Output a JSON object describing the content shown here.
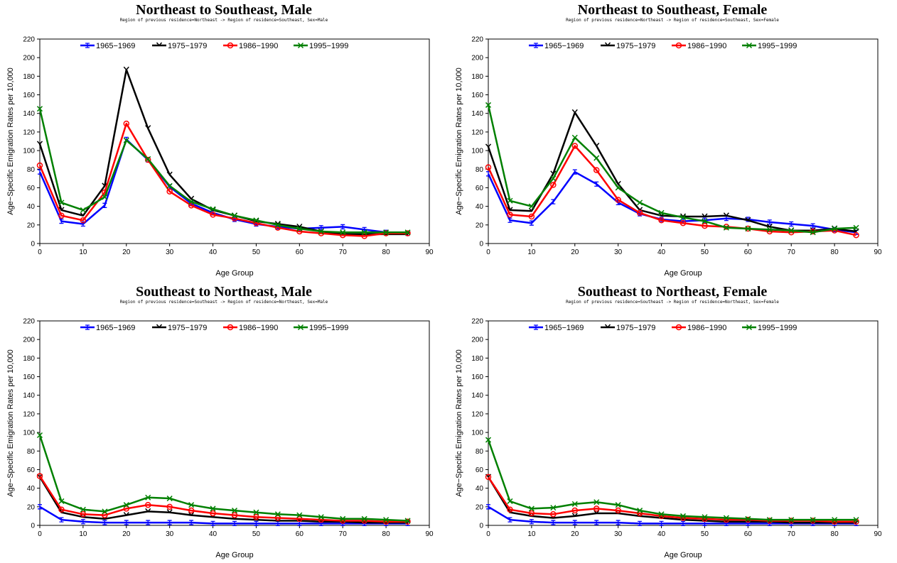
{
  "colors": {
    "1965-1969": "#0000ff",
    "1975-1979": "#000000",
    "1986-1990": "#ff0000",
    "1995-1999": "#008000"
  },
  "chart_data": [
    {
      "type": "line",
      "title": "Northeast to Southeast, Male",
      "subtitle": "Region of previous residence=Northeast -> Region of residence=Southeast, Sex=Male",
      "xlabel": "Age Group",
      "ylabel": "Age−Specific Emigration Rates per 10,000",
      "xlim": [
        0,
        90
      ],
      "ylim": [
        0,
        220
      ],
      "xticks": [
        0,
        10,
        20,
        30,
        40,
        50,
        60,
        70,
        80,
        90
      ],
      "yticks": [
        0,
        20,
        40,
        60,
        80,
        100,
        120,
        140,
        160,
        180,
        200,
        220
      ],
      "legend": "top",
      "x": [
        0,
        5,
        10,
        15,
        20,
        25,
        30,
        35,
        40,
        45,
        50,
        55,
        60,
        65,
        70,
        75,
        80,
        85
      ],
      "series": [
        {
          "name": "1965−1969",
          "color": "#0000ff",
          "values": [
            77,
            24,
            21,
            41,
            112,
            90,
            61,
            43,
            33,
            26,
            21,
            18,
            16,
            17,
            18,
            15,
            12,
            11
          ]
        },
        {
          "name": "1975−1979",
          "color": "#000000",
          "values": [
            107,
            36,
            30,
            62,
            187,
            124,
            74,
            48,
            36,
            30,
            24,
            21,
            18,
            13,
            10,
            10,
            10,
            10
          ]
        },
        {
          "name": "1986−1990",
          "color": "#ff0000",
          "values": [
            84,
            30,
            25,
            55,
            129,
            90,
            56,
            41,
            31,
            27,
            22,
            17,
            13,
            11,
            9,
            8,
            11,
            11
          ]
        },
        {
          "name": "1995−1999",
          "color": "#008000",
          "values": [
            145,
            44,
            36,
            50,
            111,
            91,
            62,
            45,
            37,
            30,
            25,
            20,
            16,
            13,
            12,
            12,
            12,
            12
          ]
        }
      ]
    },
    {
      "type": "line",
      "title": "Northeast to Southeast, Female",
      "subtitle": "Region of previous residence=Northeast -> Region of residence=Southeast, Sex=Female",
      "xlabel": "Age Group",
      "ylabel": "Age−Specific Emigration Rates per 10,000",
      "xlim": [
        0,
        90
      ],
      "ylim": [
        0,
        220
      ],
      "xticks": [
        0,
        10,
        20,
        30,
        40,
        50,
        60,
        70,
        80,
        90
      ],
      "yticks": [
        0,
        20,
        40,
        60,
        80,
        100,
        120,
        140,
        160,
        180,
        200,
        220
      ],
      "legend": "top",
      "x": [
        0,
        5,
        10,
        15,
        20,
        25,
        30,
        35,
        40,
        45,
        50,
        55,
        60,
        65,
        70,
        75,
        80,
        85
      ],
      "series": [
        {
          "name": "1965−1969",
          "color": "#0000ff",
          "values": [
            75,
            25,
            22,
            45,
            77,
            64,
            44,
            32,
            26,
            24,
            25,
            27,
            26,
            23,
            21,
            19,
            15,
            12
          ]
        },
        {
          "name": "1975−1979",
          "color": "#000000",
          "values": [
            104,
            36,
            35,
            75,
            141,
            105,
            64,
            36,
            30,
            29,
            29,
            30,
            25,
            18,
            14,
            14,
            16,
            13
          ]
        },
        {
          "name": "1986−1990",
          "color": "#ff0000",
          "values": [
            82,
            31,
            29,
            63,
            105,
            79,
            47,
            33,
            25,
            22,
            19,
            18,
            16,
            13,
            12,
            13,
            14,
            9
          ]
        },
        {
          "name": "1995−1999",
          "color": "#008000",
          "values": [
            149,
            46,
            40,
            70,
            114,
            92,
            60,
            44,
            33,
            28,
            24,
            17,
            16,
            15,
            14,
            12,
            16,
            17
          ]
        }
      ]
    },
    {
      "type": "line",
      "title": "Southeast to Northeast, Male",
      "subtitle": "Region of previous residence=Southeast -> Region of residence=Northeast, Sex=Male",
      "xlabel": "Age Group",
      "ylabel": "Age−Specific Emigration Rates per 10,000",
      "xlim": [
        0,
        90
      ],
      "ylim": [
        0,
        220
      ],
      "xticks": [
        0,
        10,
        20,
        30,
        40,
        50,
        60,
        70,
        80,
        90
      ],
      "yticks": [
        0,
        20,
        40,
        60,
        80,
        100,
        120,
        140,
        160,
        180,
        200,
        220
      ],
      "legend": "top",
      "x": [
        0,
        5,
        10,
        15,
        20,
        25,
        30,
        35,
        40,
        45,
        50,
        55,
        60,
        65,
        70,
        75,
        80,
        85
      ],
      "series": [
        {
          "name": "1965−1969",
          "color": "#0000ff",
          "values": [
            20,
            6,
            4,
            3,
            3,
            3,
            3,
            3,
            2,
            2,
            2,
            2,
            2,
            2,
            2,
            2,
            2,
            2
          ]
        },
        {
          "name": "1975−1979",
          "color": "#000000",
          "values": [
            52,
            14,
            9,
            7,
            11,
            15,
            14,
            11,
            9,
            7,
            6,
            5,
            5,
            4,
            4,
            3,
            3,
            3
          ]
        },
        {
          "name": "1986−1990",
          "color": "#ff0000",
          "values": [
            53,
            17,
            12,
            11,
            18,
            22,
            20,
            16,
            13,
            11,
            9,
            8,
            7,
            6,
            5,
            5,
            4,
            4
          ]
        },
        {
          "name": "1995−1999",
          "color": "#008000",
          "values": [
            97,
            26,
            17,
            15,
            22,
            30,
            29,
            22,
            18,
            16,
            14,
            12,
            11,
            9,
            7,
            7,
            6,
            5
          ]
        }
      ]
    },
    {
      "type": "line",
      "title": "Southeast to Northeast, Female",
      "subtitle": "Region of previous residence=Southeast -> Region of residence=Northeast, Sex=Female",
      "xlabel": "Age Group",
      "ylabel": "Age−Specific Emigration Rates per 10,000",
      "xlim": [
        0,
        90
      ],
      "ylim": [
        0,
        220
      ],
      "xticks": [
        0,
        10,
        20,
        30,
        40,
        50,
        60,
        70,
        80,
        90
      ],
      "yticks": [
        0,
        20,
        40,
        60,
        80,
        100,
        120,
        140,
        160,
        180,
        200,
        220
      ],
      "legend": "top",
      "x": [
        0,
        5,
        10,
        15,
        20,
        25,
        30,
        35,
        40,
        45,
        50,
        55,
        60,
        65,
        70,
        75,
        80,
        85
      ],
      "series": [
        {
          "name": "1965−1969",
          "color": "#0000ff",
          "values": [
            20,
            6,
            4,
            3,
            3,
            3,
            3,
            2,
            2,
            2,
            2,
            2,
            2,
            2,
            2,
            2,
            2,
            2
          ]
        },
        {
          "name": "1975−1979",
          "color": "#000000",
          "values": [
            52,
            14,
            10,
            8,
            10,
            13,
            13,
            10,
            8,
            6,
            5,
            4,
            4,
            4,
            3,
            3,
            3,
            3
          ]
        },
        {
          "name": "1986−1990",
          "color": "#ff0000",
          "values": [
            52,
            17,
            13,
            12,
            16,
            18,
            16,
            13,
            10,
            8,
            7,
            6,
            6,
            5,
            5,
            5,
            4,
            4
          ]
        },
        {
          "name": "1995−1999",
          "color": "#008000",
          "values": [
            92,
            26,
            18,
            19,
            23,
            25,
            22,
            16,
            12,
            10,
            9,
            8,
            7,
            6,
            6,
            6,
            6,
            6
          ]
        }
      ]
    }
  ]
}
